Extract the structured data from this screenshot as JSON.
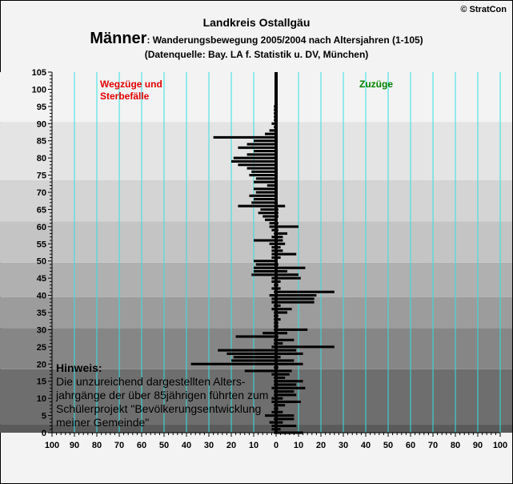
{
  "header": {
    "copyright": "© StratCon",
    "title": "Landkreis Ostallgäu",
    "subtitle_big": "Männer",
    "subtitle_rest": ": Wanderungsbewegung 2005/2004 nach Altersjahren (1-105)",
    "source": "(Datenquelle: Bay. LA f. Statistik u. DV, München)"
  },
  "hint": {
    "title": "Hinweis:",
    "lines": [
      "Die unzureichend dargestellten Alters-",
      "jahrgänge der über 85jährigen führten zum",
      "Schülerprojekt \"Bevölkerungsentwicklung",
      "meiner Gemeinde\""
    ]
  },
  "chart_data": {
    "type": "bar",
    "orientation": "horizontal",
    "y_axis": {
      "min": 0,
      "max": 105,
      "ticks": [
        0,
        5,
        10,
        15,
        20,
        25,
        30,
        35,
        40,
        45,
        50,
        55,
        60,
        65,
        70,
        75,
        80,
        85,
        90,
        95,
        100,
        105
      ]
    },
    "x_axis": {
      "min": -100,
      "max": 100,
      "ticks": [
        -100,
        -90,
        -80,
        -70,
        -60,
        -50,
        -40,
        -30,
        -20,
        -10,
        0,
        10,
        20,
        30,
        40,
        50,
        60,
        70,
        80,
        90,
        100
      ],
      "tick_labels": [
        "100",
        "90",
        "80",
        "70",
        "60",
        "50",
        "40",
        "30",
        "20",
        "10",
        "0",
        "10",
        "20",
        "30",
        "40",
        "50",
        "60",
        "70",
        "80",
        "90",
        "100"
      ]
    },
    "grid": true,
    "colors": {
      "bars": "#000000",
      "gridlines": "#33e0e0",
      "bands": [
        "#5a5a5a",
        "#6e6e6e",
        "#868686",
        "#9c9c9c",
        "#b0b0b0",
        "#c4c4c4",
        "#d4d4d4",
        "#e4e4e4",
        "#f3f3f3"
      ],
      "label_left": "#e00000",
      "label_right": "#008000"
    },
    "age_bands": [
      [
        0,
        2
      ],
      [
        3,
        18
      ],
      [
        19,
        30
      ],
      [
        31,
        39
      ],
      [
        40,
        49
      ],
      [
        50,
        61
      ],
      [
        62,
        73
      ],
      [
        74,
        90
      ],
      [
        91,
        105
      ]
    ],
    "series": [
      {
        "name": "Wegzüge und Sterbefälle",
        "side": "left",
        "values": [
          1,
          2,
          2,
          3,
          1,
          5,
          2,
          1,
          1,
          2,
          2,
          1,
          1,
          2,
          1,
          1,
          1,
          2,
          14,
          1,
          38,
          20,
          19,
          22,
          26,
          2,
          1,
          1,
          18,
          6,
          1,
          1,
          1,
          1,
          1,
          1,
          2,
          1,
          2,
          2,
          3,
          1,
          2,
          1,
          2,
          2,
          11,
          10,
          10,
          9,
          10,
          2,
          2,
          2,
          2,
          3,
          10,
          2,
          1,
          2,
          3,
          3,
          5,
          6,
          8,
          7,
          17,
          11,
          10,
          12,
          9,
          10,
          4,
          10,
          9,
          12,
          11,
          13,
          17,
          20,
          19,
          13,
          10,
          17,
          13,
          10,
          28,
          5,
          3,
          1,
          2,
          1,
          1,
          1,
          1,
          1,
          0,
          0,
          0,
          0,
          0,
          0,
          0,
          0,
          0,
          0
        ]
      },
      {
        "name": "Zuzüge",
        "side": "right",
        "values": [
          12,
          2,
          9,
          3,
          8,
          8,
          3,
          1,
          4,
          11,
          3,
          9,
          8,
          13,
          9,
          12,
          4,
          6,
          7,
          1,
          12,
          8,
          2,
          12,
          9,
          26,
          3,
          8,
          1,
          5,
          14,
          1,
          1,
          2,
          1,
          5,
          7,
          2,
          17,
          17,
          18,
          26,
          2,
          1,
          2,
          11,
          10,
          5,
          13,
          1,
          0,
          2,
          9,
          3,
          2,
          4,
          3,
          3,
          5,
          1,
          10,
          1,
          0,
          1,
          1,
          1,
          4,
          0,
          0,
          0,
          0,
          0,
          0,
          0,
          0,
          0,
          0,
          0,
          0,
          0,
          0,
          0,
          0,
          0,
          0,
          0,
          0,
          0,
          0,
          0,
          0,
          0,
          0,
          0,
          0,
          0,
          0,
          0,
          0,
          0,
          0,
          0,
          0,
          0,
          0,
          0
        ]
      }
    ]
  }
}
